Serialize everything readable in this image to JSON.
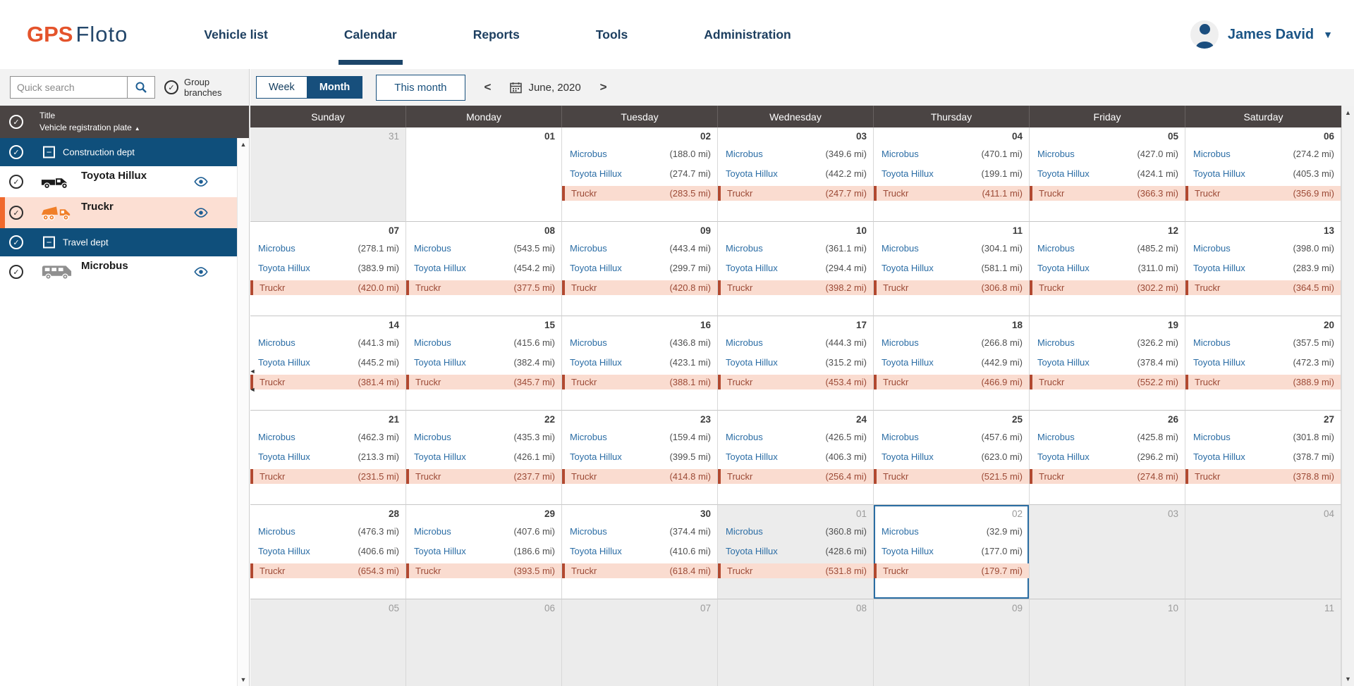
{
  "header": {
    "logo": {
      "part1": "GPS",
      "part2": "Floto"
    },
    "nav": [
      {
        "label": "Vehicle list"
      },
      {
        "label": "Calendar",
        "active": true
      },
      {
        "label": "Reports"
      },
      {
        "label": "Tools"
      },
      {
        "label": "Administration"
      }
    ],
    "user": {
      "name": "James David"
    }
  },
  "sidebar": {
    "search": {
      "placeholder": "Quick search"
    },
    "group_branches_label": "Group branches",
    "tree_header": {
      "title": "Title",
      "subtitle": "Vehicle registration plate",
      "sort_icon": "▲"
    },
    "rows": [
      {
        "kind": "group",
        "label": "Construction dept"
      },
      {
        "kind": "vehicle",
        "label": "Toyota Hillux",
        "icon": "pickup-truck-icon",
        "color": "#1b1b1b"
      },
      {
        "kind": "vehicle",
        "label": "Truckr",
        "icon": "dump-truck-icon",
        "color": "#f07f28",
        "highlighted": true
      },
      {
        "kind": "group",
        "label": "Travel dept"
      },
      {
        "kind": "vehicle",
        "label": "Microbus",
        "icon": "van-icon",
        "color": "#8f8f8f"
      }
    ]
  },
  "toolbar": {
    "week_label": "Week",
    "month_label": "Month",
    "this_month_label": "This month",
    "prev_icon": "<",
    "next_icon": ">",
    "date_label": "June, 2020"
  },
  "calendar": {
    "day_names": [
      "Sunday",
      "Monday",
      "Tuesday",
      "Wednesday",
      "Thursday",
      "Friday",
      "Saturday"
    ],
    "vehicles": [
      "Microbus",
      "Toyota Hillux",
      "Truckr"
    ],
    "vehicle_styles": [
      "link",
      "link",
      "alert"
    ],
    "unit": "mi",
    "weeks": [
      [
        {
          "day": "31",
          "out": true
        },
        {
          "day": "01"
        },
        {
          "day": "02",
          "miles": [
            "188.0",
            "274.7",
            "283.5"
          ]
        },
        {
          "day": "03",
          "miles": [
            "349.6",
            "442.2",
            "247.7"
          ]
        },
        {
          "day": "04",
          "miles": [
            "470.1",
            "199.1",
            "411.1"
          ]
        },
        {
          "day": "05",
          "miles": [
            "427.0",
            "424.1",
            "366.3"
          ]
        },
        {
          "day": "06",
          "miles": [
            "274.2",
            "405.3",
            "356.9"
          ]
        }
      ],
      [
        {
          "day": "07",
          "miles": [
            "278.1",
            "383.9",
            "420.0"
          ]
        },
        {
          "day": "08",
          "miles": [
            "543.5",
            "454.2",
            "377.5"
          ]
        },
        {
          "day": "09",
          "miles": [
            "443.4",
            "299.7",
            "420.8"
          ]
        },
        {
          "day": "10",
          "miles": [
            "361.1",
            "294.4",
            "398.2"
          ]
        },
        {
          "day": "11",
          "miles": [
            "304.1",
            "581.1",
            "306.8"
          ]
        },
        {
          "day": "12",
          "miles": [
            "485.2",
            "311.0",
            "302.2"
          ]
        },
        {
          "day": "13",
          "miles": [
            "398.0",
            "283.9",
            "364.5"
          ]
        }
      ],
      [
        {
          "day": "14",
          "miles": [
            "441.3",
            "445.2",
            "381.4"
          ]
        },
        {
          "day": "15",
          "miles": [
            "415.6",
            "382.4",
            "345.7"
          ]
        },
        {
          "day": "16",
          "miles": [
            "436.8",
            "423.1",
            "388.1"
          ]
        },
        {
          "day": "17",
          "miles": [
            "444.3",
            "315.2",
            "453.4"
          ]
        },
        {
          "day": "18",
          "miles": [
            "266.8",
            "442.9",
            "466.9"
          ]
        },
        {
          "day": "19",
          "miles": [
            "326.2",
            "378.4",
            "552.2"
          ]
        },
        {
          "day": "20",
          "miles": [
            "357.5",
            "472.3",
            "388.9"
          ]
        }
      ],
      [
        {
          "day": "21",
          "miles": [
            "462.3",
            "213.3",
            "231.5"
          ]
        },
        {
          "day": "22",
          "miles": [
            "435.3",
            "426.1",
            "237.7"
          ]
        },
        {
          "day": "23",
          "miles": [
            "159.4",
            "399.5",
            "414.8"
          ]
        },
        {
          "day": "24",
          "miles": [
            "426.5",
            "406.3",
            "256.4"
          ]
        },
        {
          "day": "25",
          "miles": [
            "457.6",
            "623.0",
            "521.5"
          ]
        },
        {
          "day": "26",
          "miles": [
            "425.8",
            "296.2",
            "274.8"
          ]
        },
        {
          "day": "27",
          "miles": [
            "301.8",
            "378.7",
            "378.8"
          ]
        }
      ],
      [
        {
          "day": "28",
          "miles": [
            "476.3",
            "406.6",
            "654.3"
          ]
        },
        {
          "day": "29",
          "miles": [
            "407.6",
            "186.6",
            "393.5"
          ]
        },
        {
          "day": "30",
          "miles": [
            "374.4",
            "410.6",
            "618.4"
          ]
        },
        {
          "day": "01",
          "out": true,
          "miles": [
            "360.8",
            "428.6",
            "531.8"
          ]
        },
        {
          "day": "02",
          "out": true,
          "selected": true,
          "miles": [
            "32.9",
            "177.0",
            "179.7"
          ]
        },
        {
          "day": "03",
          "out": true
        },
        {
          "day": "04",
          "out": true
        }
      ],
      [
        {
          "day": "05",
          "out": true
        },
        {
          "day": "06",
          "out": true
        },
        {
          "day": "07",
          "out": true
        },
        {
          "day": "08",
          "out": true
        },
        {
          "day": "09",
          "out": true
        },
        {
          "day": "10",
          "out": true
        },
        {
          "day": "11",
          "out": true
        }
      ]
    ]
  },
  "colors": {
    "brand_orange": "#e4532b",
    "brand_navy": "#1c4569",
    "dept_row_blue": "#0f4f7b",
    "header_gray": "#4a4443",
    "highlight_pink": "#fcdfd3",
    "highlight_border_orange": "#f0682c",
    "alert_entry_pink": "#fadcd0",
    "alert_entry_red": "#b24930",
    "entry_link_blue": "#2b6da5",
    "selected_cell_border": "#2a6da3"
  }
}
